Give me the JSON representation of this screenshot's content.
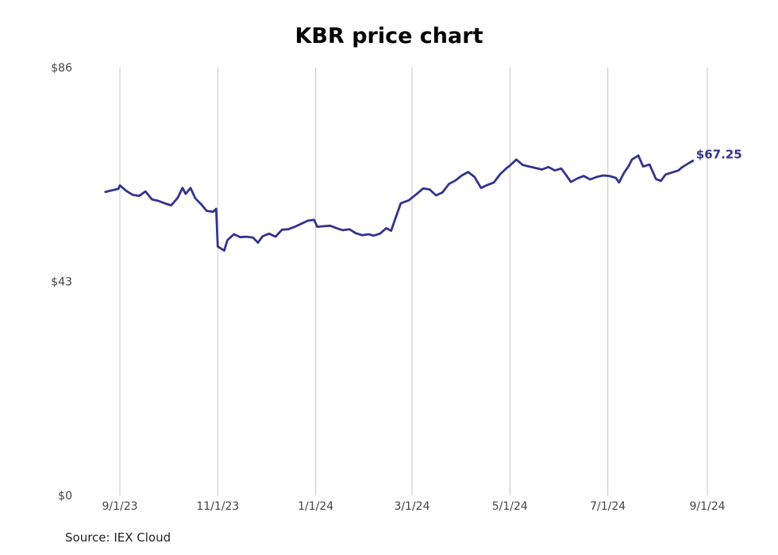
{
  "chart_data": {
    "type": "line",
    "title": "KBR price chart",
    "source": "Source: IEX Cloud",
    "ylim": [
      0,
      86
    ],
    "y_ticks": [
      {
        "value": 0,
        "label": "$0"
      },
      {
        "value": 43,
        "label": "$43"
      },
      {
        "value": 86,
        "label": "$86"
      }
    ],
    "x_ticks": [
      "2023-09-01",
      "2023-11-01",
      "2024-01-01",
      "2024-03-01",
      "2024-05-01",
      "2024-07-01",
      "2024-09-01"
    ],
    "x_tick_labels": [
      "9/1/23",
      "11/1/23",
      "1/1/24",
      "3/1/24",
      "5/1/24",
      "7/1/24",
      "9/1/24"
    ],
    "xlim": [
      "2023-08-18",
      "2024-09-01"
    ],
    "grid": "vertical at x ticks",
    "line_color": "#33338f",
    "last_value_label": "$67.25",
    "series": [
      {
        "values": [
          [
            "2023-08-23",
            61.0
          ],
          [
            "2023-08-27",
            61.3
          ],
          [
            "2023-08-31",
            61.6
          ],
          [
            "2023-09-01",
            62.3
          ],
          [
            "2023-09-05",
            61.2
          ],
          [
            "2023-09-09",
            60.4
          ],
          [
            "2023-09-13",
            60.2
          ],
          [
            "2023-09-17",
            61.1
          ],
          [
            "2023-09-21",
            59.5
          ],
          [
            "2023-09-25",
            59.2
          ],
          [
            "2023-09-29",
            58.7
          ],
          [
            "2023-10-03",
            58.3
          ],
          [
            "2023-10-07",
            59.8
          ],
          [
            "2023-10-10",
            61.8
          ],
          [
            "2023-10-12",
            60.6
          ],
          [
            "2023-10-15",
            61.8
          ],
          [
            "2023-10-18",
            59.7
          ],
          [
            "2023-10-22",
            58.4
          ],
          [
            "2023-10-25",
            57.2
          ],
          [
            "2023-10-29",
            57.0
          ],
          [
            "2023-10-31",
            57.6
          ],
          [
            "2023-11-01",
            50.0
          ],
          [
            "2023-11-03",
            49.6
          ],
          [
            "2023-11-05",
            49.2
          ],
          [
            "2023-11-07",
            51.3
          ],
          [
            "2023-11-11",
            52.5
          ],
          [
            "2023-11-15",
            51.9
          ],
          [
            "2023-11-19",
            52.0
          ],
          [
            "2023-11-23",
            51.8
          ],
          [
            "2023-11-26",
            50.8
          ],
          [
            "2023-11-29",
            52.1
          ],
          [
            "2023-12-03",
            52.6
          ],
          [
            "2023-12-07",
            52.0
          ],
          [
            "2023-12-11",
            53.4
          ],
          [
            "2023-12-15",
            53.5
          ],
          [
            "2023-12-19",
            54.0
          ],
          [
            "2023-12-23",
            54.6
          ],
          [
            "2023-12-27",
            55.2
          ],
          [
            "2023-12-31",
            55.4
          ],
          [
            "2024-01-02",
            54.0
          ],
          [
            "2024-01-06",
            54.1
          ],
          [
            "2024-01-10",
            54.2
          ],
          [
            "2024-01-14",
            53.7
          ],
          [
            "2024-01-18",
            53.3
          ],
          [
            "2024-01-22",
            53.5
          ],
          [
            "2024-01-26",
            52.7
          ],
          [
            "2024-01-30",
            52.3
          ],
          [
            "2024-02-03",
            52.5
          ],
          [
            "2024-02-06",
            52.2
          ],
          [
            "2024-02-10",
            52.6
          ],
          [
            "2024-02-14",
            53.7
          ],
          [
            "2024-02-17",
            53.2
          ],
          [
            "2024-02-20",
            56.0
          ],
          [
            "2024-02-23",
            58.7
          ],
          [
            "2024-02-28",
            59.3
          ],
          [
            "2024-03-04",
            60.6
          ],
          [
            "2024-03-08",
            61.7
          ],
          [
            "2024-03-12",
            61.5
          ],
          [
            "2024-03-16",
            60.3
          ],
          [
            "2024-03-20",
            60.9
          ],
          [
            "2024-03-24",
            62.6
          ],
          [
            "2024-03-28",
            63.3
          ],
          [
            "2024-04-01",
            64.3
          ],
          [
            "2024-04-05",
            65.0
          ],
          [
            "2024-04-09",
            64.0
          ],
          [
            "2024-04-13",
            61.8
          ],
          [
            "2024-04-17",
            62.4
          ],
          [
            "2024-04-21",
            62.9
          ],
          [
            "2024-04-25",
            64.6
          ],
          [
            "2024-04-29",
            65.8
          ],
          [
            "2024-05-01",
            66.3
          ],
          [
            "2024-05-05",
            67.5
          ],
          [
            "2024-05-09",
            66.4
          ],
          [
            "2024-05-13",
            66.1
          ],
          [
            "2024-05-17",
            65.8
          ],
          [
            "2024-05-21",
            65.5
          ],
          [
            "2024-05-25",
            66.0
          ],
          [
            "2024-05-29",
            65.3
          ],
          [
            "2024-06-02",
            65.7
          ],
          [
            "2024-06-05",
            64.4
          ],
          [
            "2024-06-08",
            63.0
          ],
          [
            "2024-06-12",
            63.7
          ],
          [
            "2024-06-16",
            64.2
          ],
          [
            "2024-06-20",
            63.5
          ],
          [
            "2024-06-24",
            64.0
          ],
          [
            "2024-06-28",
            64.3
          ],
          [
            "2024-07-02",
            64.2
          ],
          [
            "2024-07-06",
            63.8
          ],
          [
            "2024-07-08",
            62.9
          ],
          [
            "2024-07-11",
            64.8
          ],
          [
            "2024-07-14",
            66.2
          ],
          [
            "2024-07-16",
            67.5
          ],
          [
            "2024-07-20",
            68.3
          ],
          [
            "2024-07-23",
            66.1
          ],
          [
            "2024-07-27",
            66.5
          ],
          [
            "2024-07-31",
            63.6
          ],
          [
            "2024-08-03",
            63.2
          ],
          [
            "2024-08-06",
            64.5
          ],
          [
            "2024-08-10",
            64.9
          ],
          [
            "2024-08-14",
            65.3
          ],
          [
            "2024-08-16",
            65.9
          ],
          [
            "2024-08-20",
            66.7
          ],
          [
            "2024-08-23",
            67.25
          ]
        ]
      }
    ]
  }
}
